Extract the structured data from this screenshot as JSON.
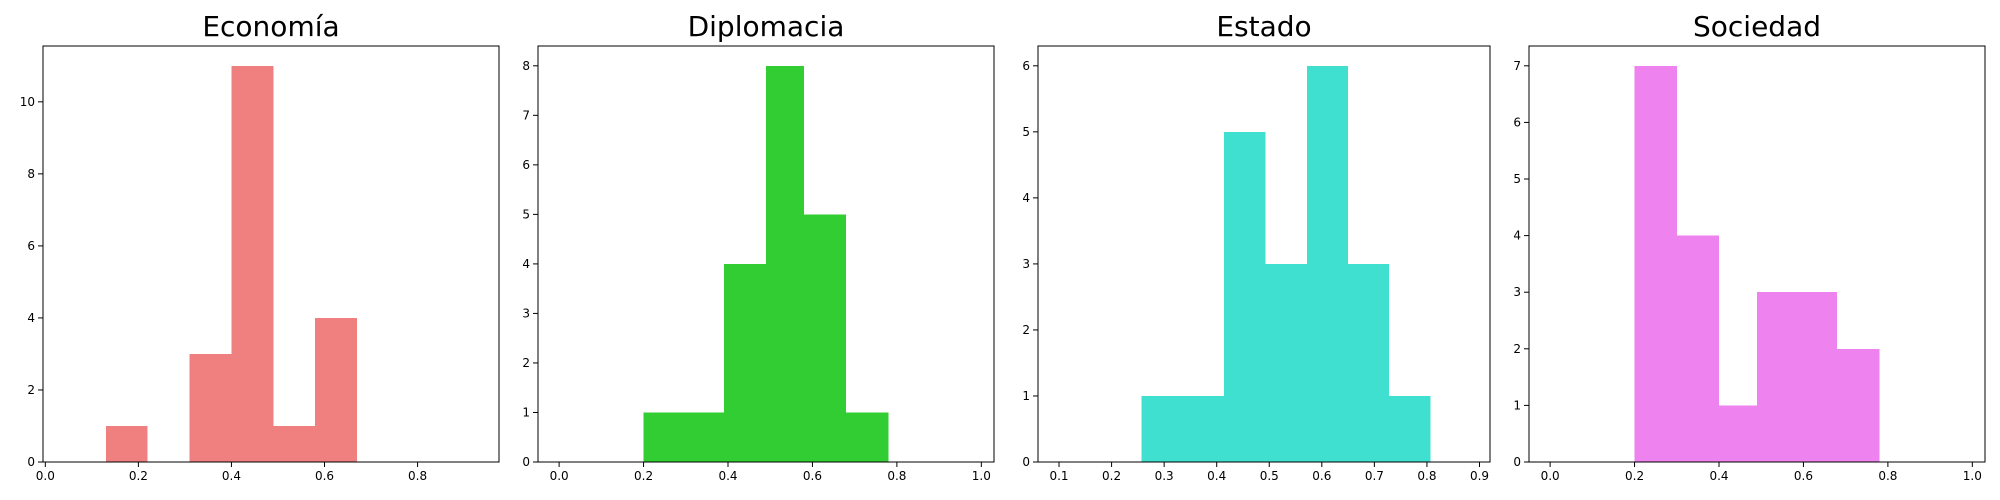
{
  "chart_data": [
    {
      "type": "bar",
      "title": "Economía",
      "color": "#F08080",
      "xlim": [
        -0.005,
        0.975
      ],
      "ylim": [
        0,
        11.55
      ],
      "xticks": [
        0.0,
        0.2,
        0.4,
        0.6,
        0.8
      ],
      "xtick_labels": [
        "0.0",
        "0.2",
        "0.4",
        "0.6",
        "0.8"
      ],
      "yticks": [
        0,
        2,
        4,
        6,
        8,
        10
      ],
      "ytick_labels": [
        "0",
        "2",
        "4",
        "6",
        "8",
        "10"
      ],
      "bins": [
        0.13,
        0.22,
        0.31,
        0.4,
        0.49,
        0.58,
        0.67
      ],
      "counts": [
        1,
        0,
        3,
        11,
        1,
        4
      ],
      "grid": false,
      "legend": "none"
    },
    {
      "type": "bar",
      "title": "Diplomacia",
      "color": "#32CD32",
      "xlim": [
        -0.05,
        1.03
      ],
      "ylim": [
        0,
        8.4
      ],
      "xticks": [
        0.0,
        0.2,
        0.4,
        0.6,
        0.8,
        1.0
      ],
      "xtick_labels": [
        "0.0",
        "0.2",
        "0.4",
        "0.6",
        "0.8",
        "1.0"
      ],
      "yticks": [
        0,
        1,
        2,
        3,
        4,
        5,
        6,
        7,
        8
      ],
      "ytick_labels": [
        "0",
        "1",
        "2",
        "3",
        "4",
        "5",
        "6",
        "7",
        "8"
      ],
      "bins": [
        0.2,
        0.29,
        0.39,
        0.49,
        0.58,
        0.68,
        0.78
      ],
      "counts": [
        1,
        1,
        4,
        8,
        5,
        1
      ],
      "grid": false,
      "legend": "none"
    },
    {
      "type": "bar",
      "title": "Estado",
      "color": "#40E0D0",
      "xlim": [
        0.06,
        0.92
      ],
      "ylim": [
        0,
        6.3
      ],
      "xticks": [
        0.1,
        0.2,
        0.3,
        0.4,
        0.5,
        0.6,
        0.7,
        0.8,
        0.9
      ],
      "xtick_labels": [
        "0.1",
        "0.2",
        "0.3",
        "0.4",
        "0.5",
        "0.6",
        "0.7",
        "0.8",
        "0.9"
      ],
      "yticks": [
        0,
        1,
        2,
        3,
        4,
        5,
        6
      ],
      "ytick_labels": [
        "0",
        "1",
        "2",
        "3",
        "4",
        "5",
        "6"
      ],
      "bins": [
        0.257,
        0.336,
        0.414,
        0.493,
        0.572,
        0.65,
        0.728,
        0.807
      ],
      "counts": [
        1,
        1,
        5,
        3,
        6,
        3,
        1
      ],
      "grid": false,
      "legend": "none"
    },
    {
      "type": "bar",
      "title": "Sociedad",
      "color": "#EE82EE",
      "xlim": [
        -0.05,
        1.03
      ],
      "ylim": [
        0,
        7.35
      ],
      "xticks": [
        0.0,
        0.2,
        0.4,
        0.6,
        0.8,
        1.0
      ],
      "xtick_labels": [
        "0.0",
        "0.2",
        "0.4",
        "0.6",
        "0.8",
        "1.0"
      ],
      "yticks": [
        0,
        1,
        2,
        3,
        4,
        5,
        6,
        7
      ],
      "ytick_labels": [
        "0",
        "1",
        "2",
        "3",
        "4",
        "5",
        "6",
        "7"
      ],
      "bins": [
        0.2,
        0.3,
        0.4,
        0.49,
        0.59,
        0.68,
        0.78
      ],
      "counts": [
        7,
        4,
        1,
        3,
        3,
        2
      ],
      "grid": false,
      "legend": "none"
    }
  ]
}
